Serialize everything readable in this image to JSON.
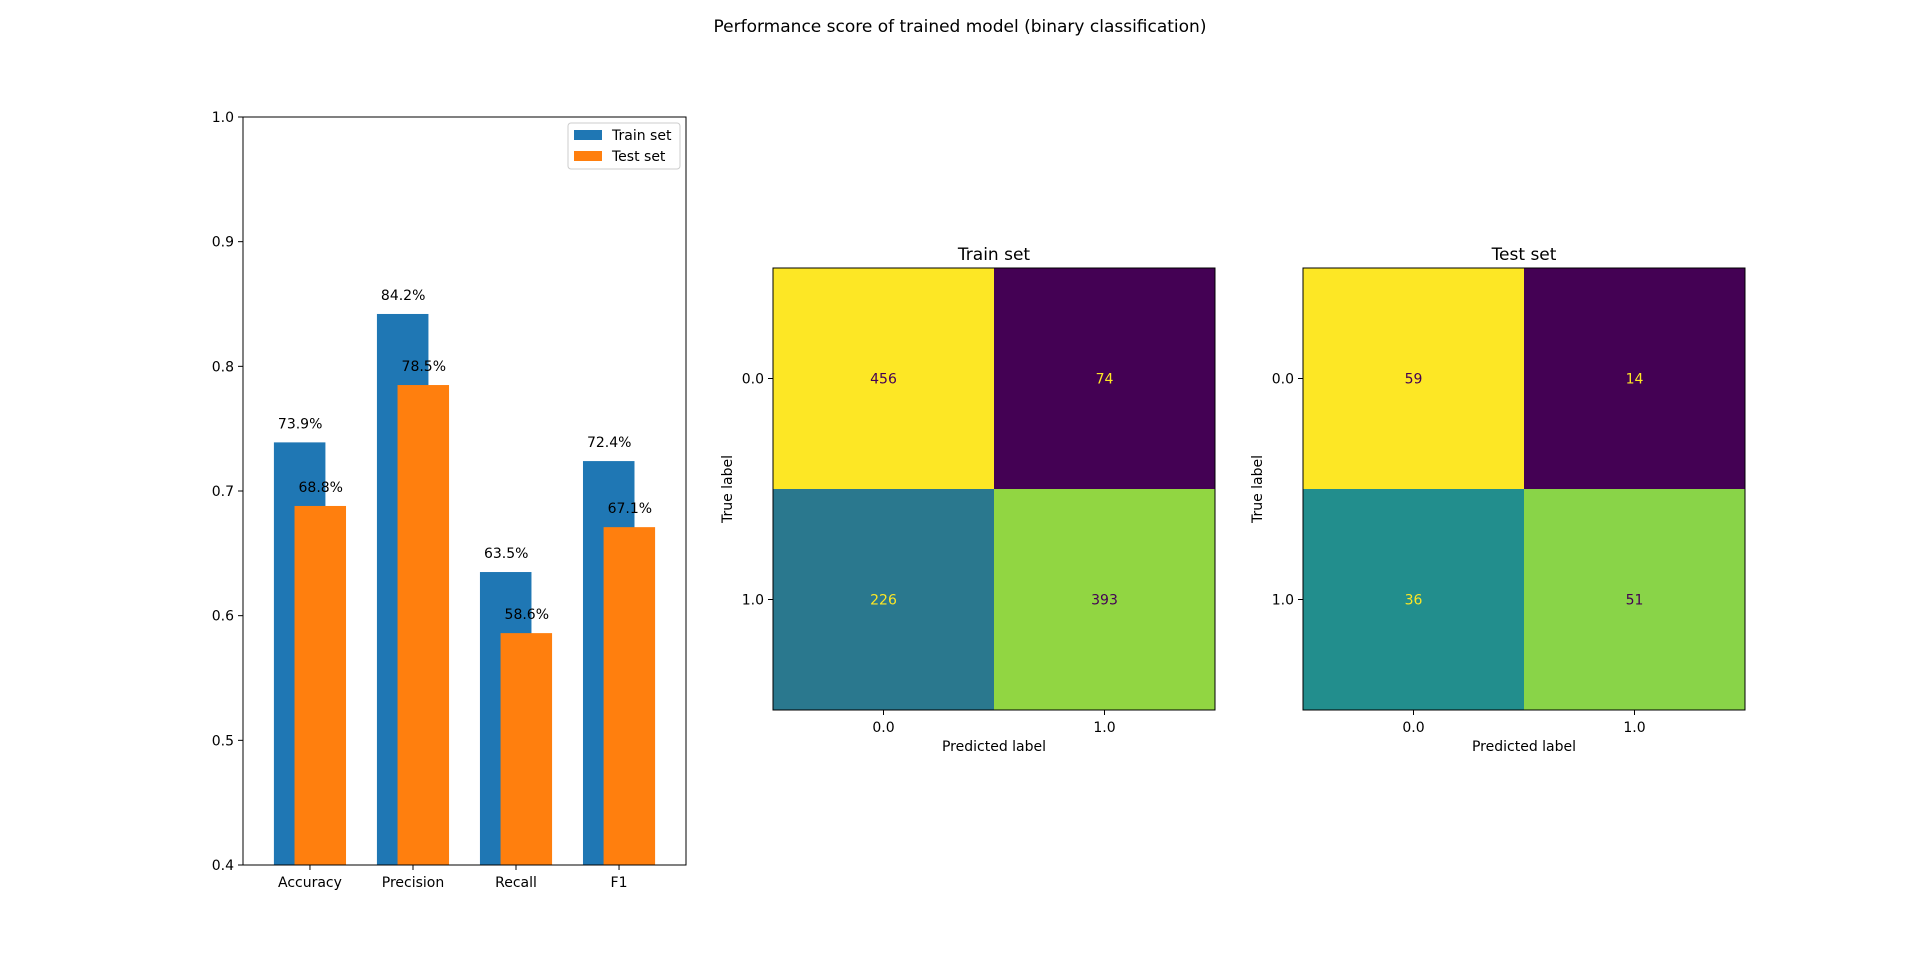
{
  "chart_data": [
    {
      "type": "bar",
      "title": "Performance score of trained model (binary classification)",
      "categories": [
        "Accuracy",
        "Precision",
        "Recall",
        "F1"
      ],
      "series": [
        {
          "name": "Train set",
          "color": "#1f77b4",
          "values": [
            0.739,
            0.842,
            0.635,
            0.724
          ],
          "labels": [
            "73.9%",
            "84.2%",
            "63.5%",
            "72.4%"
          ]
        },
        {
          "name": "Test set",
          "color": "#ff7f0e",
          "values": [
            0.688,
            0.785,
            0.586,
            0.671
          ],
          "labels": [
            "68.8%",
            "78.5%",
            "58.6%",
            "67.1%"
          ]
        }
      ],
      "ylim": [
        0.4,
        1.0
      ],
      "yticks": [
        "0.4",
        "0.5",
        "0.6",
        "0.7",
        "0.8",
        "0.9",
        "1.0"
      ],
      "legend_position": "top-right",
      "grid": false
    },
    {
      "type": "heatmap",
      "title": "Train set",
      "xlabel": "Predicted label",
      "ylabel": "True label",
      "x_categories": [
        "0.0",
        "1.0"
      ],
      "y_categories": [
        "0.0",
        "1.0"
      ],
      "matrix": [
        [
          456,
          74
        ],
        [
          226,
          393
        ]
      ],
      "colormap": "viridis"
    },
    {
      "type": "heatmap",
      "title": "Test set",
      "xlabel": "Predicted label",
      "ylabel": "True label",
      "x_categories": [
        "0.0",
        "1.0"
      ],
      "y_categories": [
        "0.0",
        "1.0"
      ],
      "matrix": [
        [
          59,
          14
        ],
        [
          36,
          51
        ]
      ],
      "colormap": "viridis"
    }
  ]
}
